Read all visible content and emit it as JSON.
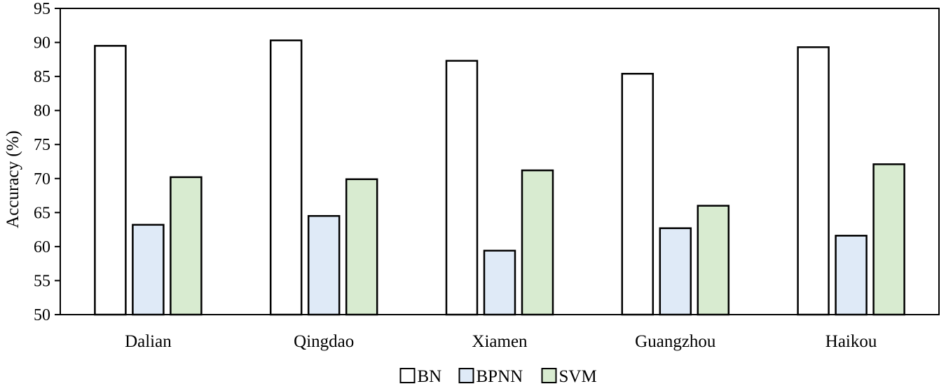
{
  "chart_data": {
    "type": "bar",
    "title": "",
    "xlabel": "",
    "ylabel": "Accuracy (%)",
    "ylim": [
      50,
      95
    ],
    "yticks": [
      50,
      55,
      60,
      65,
      70,
      75,
      80,
      85,
      90,
      95
    ],
    "grid": false,
    "legend_position": "bottom-center",
    "categories": [
      "Dalian",
      "Qingdao",
      "Xiamen",
      "Guangzhou",
      "Haikou"
    ],
    "series": [
      {
        "name": "BN",
        "color": "#ffffff",
        "values": [
          89.5,
          90.3,
          87.3,
          85.4,
          89.3
        ]
      },
      {
        "name": "BPNN",
        "color": "#dfeaf7",
        "values": [
          63.2,
          64.5,
          59.4,
          62.7,
          61.6
        ]
      },
      {
        "name": "SVM",
        "color": "#d8ebd0",
        "values": [
          70.2,
          69.9,
          71.2,
          66.0,
          72.1
        ]
      }
    ]
  }
}
